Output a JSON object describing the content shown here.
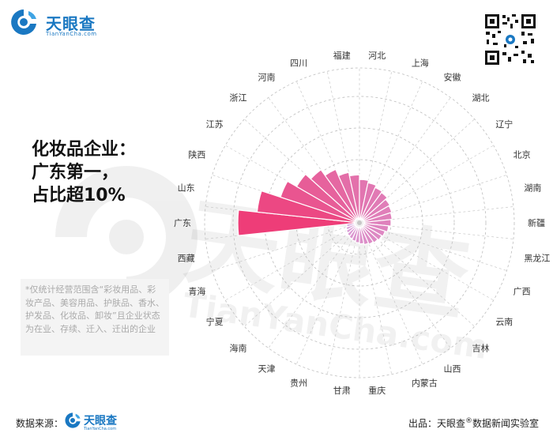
{
  "brand": {
    "name": "天眼查",
    "url_text": "TianYanCha.com",
    "color": "#1a78c2"
  },
  "headline": {
    "line1": "化妆品企业：",
    "line2": "广东第一，",
    "line3": "占比超10%"
  },
  "note": {
    "text": "*仅统计经营范围含“彩妆用品、彩妆产品、美容用品、护肤品、香水、护发品、化妆品、卸妆”且企业状态为在业、存续、迁入、迁出的企业"
  },
  "footer": {
    "source_label": "数据来源：",
    "credit_prefix": "出品：天眼查",
    "credit_mark": "®",
    "credit_suffix": "数据新闻实验室"
  },
  "chart_data": {
    "type": "polar-bar",
    "title": "",
    "unit": "",
    "max_value": 1,
    "colors": {
      "high": "#ee3d78",
      "low": "#d7a6e0"
    },
    "categories": [
      "广东",
      "山东",
      "陕西",
      "江苏",
      "浙江",
      "河南",
      "四川",
      "福建",
      "河北",
      "上海",
      "安徽",
      "湖北",
      "辽宁",
      "北京",
      "湖南",
      "新疆",
      "黑龙江",
      "广西",
      "云南",
      "吉林",
      "山西",
      "内蒙古",
      "重庆",
      "甘肃",
      "贵州",
      "天津",
      "海南",
      "宁夏",
      "青海",
      "西藏"
    ],
    "values": [
      1.0,
      0.84,
      0.67,
      0.58,
      0.52,
      0.46,
      0.4,
      0.37,
      0.33,
      0.31,
      0.29,
      0.28,
      0.26,
      0.25,
      0.24,
      0.23,
      0.21,
      0.19,
      0.18,
      0.17,
      0.16,
      0.15,
      0.14,
      0.13,
      0.12,
      0.11,
      0.1,
      0.09,
      0.08,
      0.07
    ]
  }
}
